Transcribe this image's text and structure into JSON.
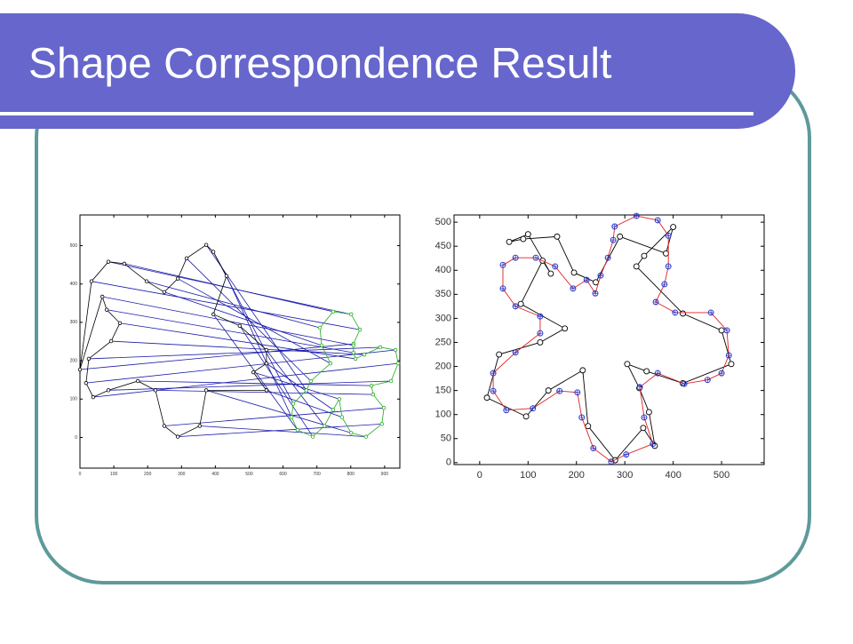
{
  "header": {
    "title": "Shape Correspondence Result"
  },
  "chart_data": [
    {
      "type": "line",
      "closed": true,
      "link_color": "#1a1aaa",
      "marker": "circle",
      "xlim": [
        0,
        945
      ],
      "ylim": [
        -80,
        580
      ],
      "xticks": [
        0,
        100,
        200,
        300,
        400,
        500,
        600,
        700,
        800,
        900
      ],
      "yticks": [
        0,
        100,
        200,
        300,
        400,
        500
      ],
      "series": [
        {
          "color": "#000000",
          "x": [
            0,
            34,
            84,
            131,
            197,
            249,
            289,
            315,
            373,
            394,
            433,
            394,
            472,
            551,
            551,
            512,
            551,
            373,
            354,
            289,
            249,
            223,
            171,
            84,
            39,
            18,
            26,
            92,
            118,
            79,
            66
          ],
          "values": [
            177,
            407,
            458,
            453,
            407,
            379,
            414,
            467,
            502,
            484,
            421,
            321,
            291,
            228,
            193,
            170,
            123,
            123,
            30,
            2,
            30,
            123,
            147,
            123,
            105,
            142,
            205,
            251,
            298,
            333,
            367
          ]
        },
        {
          "color": "#22aa22",
          "x": [
            808,
            827,
            801,
            748,
            709,
            714,
            740,
            682,
            669,
            630,
            625,
            643,
            688,
            722,
            748,
            766,
            774,
            801,
            845,
            892,
            898,
            866,
            861,
            919,
            940,
            932,
            887,
            840,
            814,
            808,
            808
          ],
          "values": [
            244,
            281,
            321,
            328,
            286,
            240,
            193,
            147,
            123,
            88,
            53,
            19,
            2,
            30,
            72,
            100,
            53,
            12,
            2,
            35,
            77,
            112,
            135,
            147,
            193,
            228,
            235,
            216,
            205,
            221,
            240
          ]
        }
      ]
    },
    {
      "type": "line",
      "closed": true,
      "marker": "circle",
      "xlim": [
        -53,
        588
      ],
      "ylim": [
        -4,
        515
      ],
      "xticks": [
        0,
        100,
        200,
        300,
        400,
        500
      ],
      "yticks": [
        0,
        50,
        100,
        150,
        200,
        250,
        300,
        350,
        400,
        450,
        500
      ],
      "series": [
        {
          "color": "#000000",
          "x": [
            61,
            100,
            147,
            130,
            85,
            176,
            125,
            40,
            15,
            96,
            142,
            213,
            224,
            280,
            338,
            362,
            350,
            330,
            305,
            345,
            420,
            520,
            500,
            420,
            324,
            340,
            400,
            385,
            290,
            240,
            195,
            160,
            90
          ],
          "values": [
            459,
            475,
            393,
            420,
            330,
            279,
            250,
            225,
            135,
            96,
            150,
            192,
            76,
            5,
            72,
            35,
            105,
            155,
            205,
            190,
            165,
            205,
            275,
            310,
            408,
            430,
            490,
            435,
            470,
            375,
            395,
            470,
            465
          ]
        },
        {
          "color": "#dd2222",
          "marker_color": "#2233cc",
          "x": [
            279,
            324,
            368,
            390,
            390,
            382,
            364,
            404,
            478,
            511,
            515,
            500,
            471,
            423,
            368,
            331,
            340,
            358,
            303,
            272,
            235,
            211,
            202,
            165,
            110,
            55,
            28,
            28,
            74,
            125,
            125,
            74,
            48,
            48,
            74,
            116,
            156,
            193,
            221,
            239,
            250,
            265,
            276
          ],
          "values": [
            491,
            513,
            504,
            472,
            408,
            371,
            334,
            312,
            312,
            275,
            223,
            186,
            172,
            164,
            186,
            157,
            94,
            39,
            17,
            2,
            30,
            94,
            146,
            149,
            113,
            109,
            149,
            186,
            229,
            269,
            304,
            325,
            362,
            411,
            426,
            426,
            408,
            362,
            380,
            352,
            389,
            426,
            463
          ]
        }
      ]
    }
  ]
}
